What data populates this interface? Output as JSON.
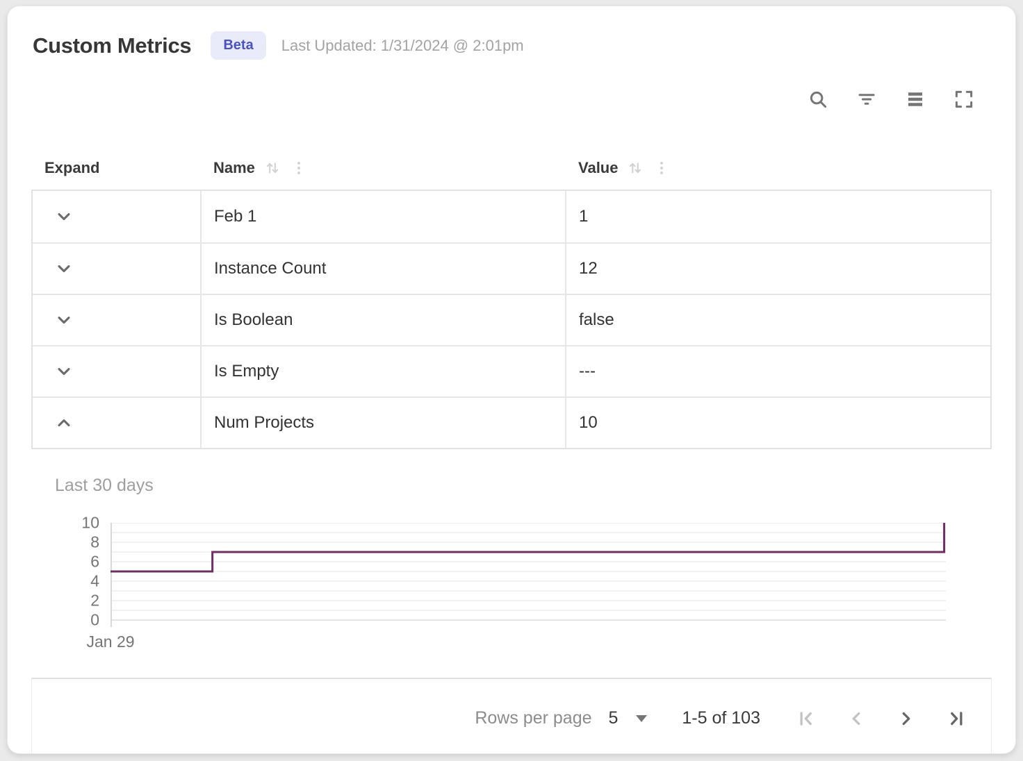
{
  "window": {
    "background": "#eaeaea",
    "card_background": "#ffffff"
  },
  "header": {
    "title": "Custom Metrics",
    "badge": "Beta",
    "badge_bg": "#e9ebfa",
    "badge_color": "#4853c3",
    "last_updated": "Last Updated: 1/31/2024 @ 2:01pm"
  },
  "toolbar": {
    "icons": [
      "search",
      "filter",
      "density",
      "fullscreen"
    ],
    "icon_color": "#757575"
  },
  "table": {
    "columns": [
      {
        "key": "expand",
        "label": "Expand",
        "sortable": false
      },
      {
        "key": "name",
        "label": "Name",
        "sortable": true
      },
      {
        "key": "value",
        "label": "Value",
        "sortable": true
      }
    ],
    "rows": [
      {
        "name": "Feb 1",
        "value": "1",
        "expanded": false
      },
      {
        "name": "Instance Count",
        "value": "12",
        "expanded": false
      },
      {
        "name": "Is Boolean",
        "value": "false",
        "expanded": false
      },
      {
        "name": "Is Empty",
        "value": "---",
        "expanded": false
      },
      {
        "name": "Num Projects",
        "value": "10",
        "expanded": true
      }
    ]
  },
  "chart_data": {
    "type": "line",
    "line_style": "step-after",
    "title": "Last 30 days",
    "series": [
      {
        "name": "Num Projects",
        "color": "#6E2D64",
        "steps": [
          {
            "x_fraction": 0.0,
            "value": 5
          },
          {
            "x_fraction": 0.122,
            "value": 7
          },
          {
            "x_fraction": 0.998,
            "value": 10
          }
        ]
      }
    ],
    "ylim": [
      0,
      10
    ],
    "y_ticks": [
      0,
      2,
      4,
      6,
      8,
      10
    ],
    "grid_interval": 1,
    "x_tick_labels": [
      "Jan 29"
    ],
    "legend": "none",
    "grid": "on"
  },
  "pagination": {
    "rows_per_page_label": "Rows per page",
    "rows_per_page_value": "5",
    "range_label": "1-5 of 103",
    "buttons": {
      "first": {
        "enabled": false
      },
      "prev": {
        "enabled": false
      },
      "next": {
        "enabled": true
      },
      "last": {
        "enabled": true
      }
    }
  }
}
